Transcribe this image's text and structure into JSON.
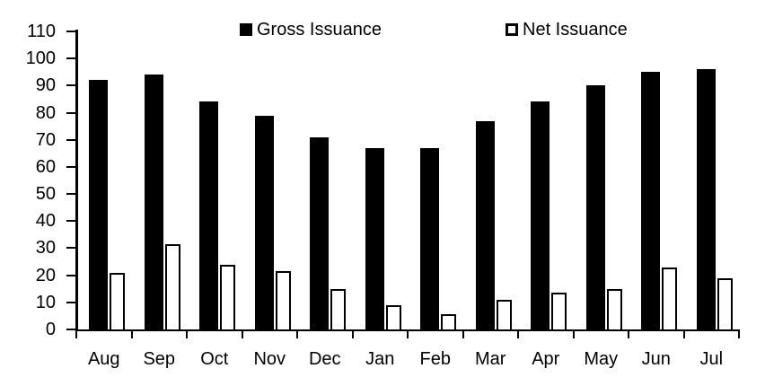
{
  "chart_data": {
    "type": "bar",
    "title": "",
    "xlabel": "",
    "ylabel": "",
    "categories": [
      "Aug",
      "Sep",
      "Oct",
      "Nov",
      "Dec",
      "Jan",
      "Feb",
      "Mar",
      "Apr",
      "May",
      "Jun",
      "Jul"
    ],
    "series": [
      {
        "name": "Gross Issuance",
        "style": "solid-black",
        "values": [
          92,
          94,
          84,
          79,
          71,
          67,
          67,
          77,
          84,
          90,
          95,
          96
        ]
      },
      {
        "name": "Net Issuance",
        "style": "white-outlined",
        "values": [
          21,
          31.5,
          24,
          21.5,
          15,
          9,
          5.5,
          11,
          13.5,
          15,
          23,
          19
        ]
      }
    ],
    "ylim": [
      0,
      110
    ],
    "ytick_step": 10,
    "yticks": [
      0,
      10,
      20,
      30,
      40,
      50,
      60,
      70,
      80,
      90,
      100,
      110
    ],
    "grid": false,
    "legend_position": "top"
  },
  "legend": {
    "items": [
      {
        "label": "Gross Issuance",
        "swatch": "filled-black-square"
      },
      {
        "label": "Net Issuance",
        "swatch": "outlined-white-square"
      }
    ]
  },
  "colors": {
    "bar_fill": "#000000",
    "bar_outline": "#000000",
    "background": "#ffffff",
    "text": "#000000"
  }
}
